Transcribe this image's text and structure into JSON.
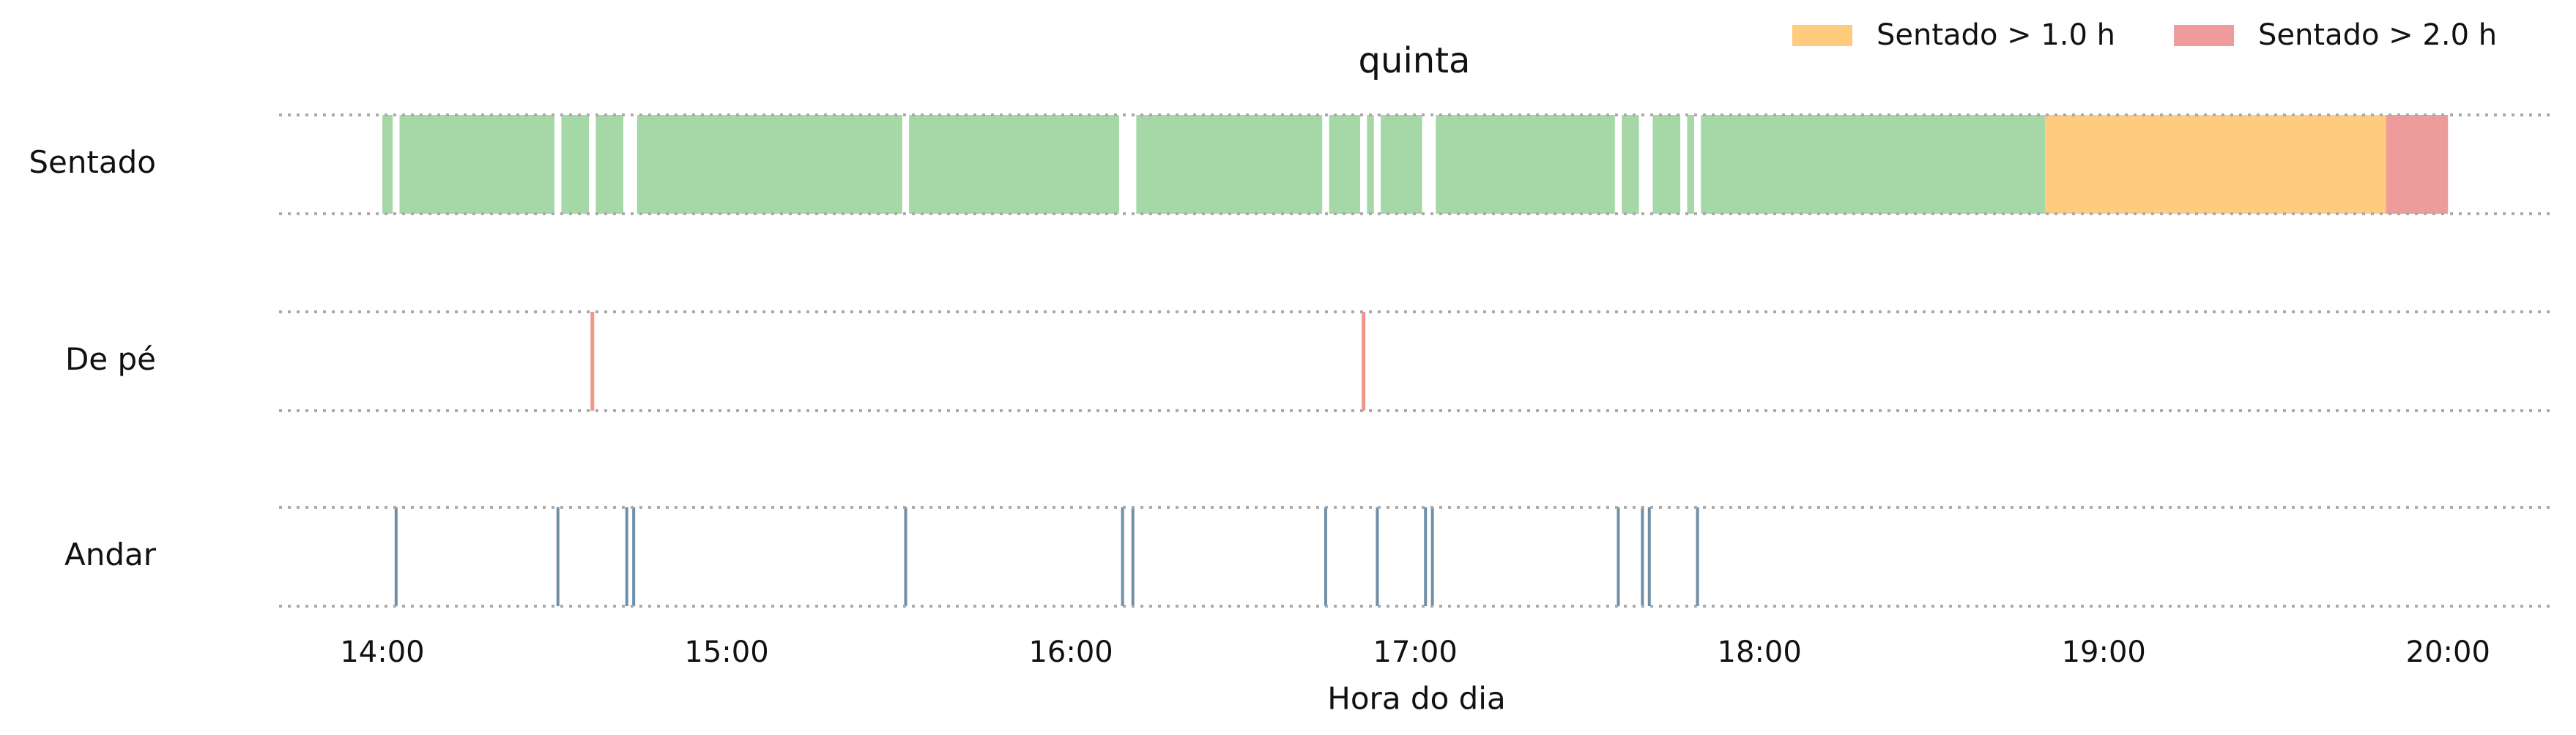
{
  "chart_data": {
    "type": "timeline",
    "title": "quinta",
    "xlabel": "Hora do dia",
    "xlim": [
      13.7,
      20.31
    ],
    "xticks": [
      {
        "value": 14,
        "label": "14:00"
      },
      {
        "value": 15,
        "label": "15:00"
      },
      {
        "value": 16,
        "label": "16:00"
      },
      {
        "value": 17,
        "label": "17:00"
      },
      {
        "value": 18,
        "label": "18:00"
      },
      {
        "value": 19,
        "label": "19:00"
      },
      {
        "value": 20,
        "label": "20:00"
      }
    ],
    "legend": "upper right",
    "rows": [
      {
        "label": "Sentado",
        "series": [
          {
            "color": "#a6d7a6",
            "intervals": [
              [
                14.0,
                14.03
              ],
              [
                14.05,
                14.5
              ],
              [
                14.52,
                14.6
              ],
              [
                14.62,
                14.7
              ],
              [
                14.74,
                15.51
              ],
              [
                15.53,
                16.14
              ],
              [
                16.19,
                16.73
              ],
              [
                16.75,
                16.84
              ],
              [
                16.86,
                16.88
              ],
              [
                16.9,
                17.02
              ],
              [
                17.06,
                17.58
              ],
              [
                17.6,
                17.65
              ],
              [
                17.69,
                17.77
              ],
              [
                17.79,
                17.81
              ],
              [
                17.83,
                18.83
              ]
            ]
          },
          {
            "name": "Sentado > 1.0 h",
            "color": "#fecb7f",
            "intervals": [
              [
                18.83,
                19.82
              ]
            ]
          },
          {
            "name": "Sentado > 2.0 h",
            "color": "#ee9b9b",
            "intervals": [
              [
                19.82,
                20.0
              ]
            ]
          }
        ]
      },
      {
        "label": "De pé",
        "series": [
          {
            "color": "#f0958a",
            "events": [
              14.61,
              16.85
            ]
          }
        ]
      },
      {
        "label": "Andar",
        "series": [
          {
            "color": "#6f8fa8",
            "events": [
              14.04,
              14.51,
              14.71,
              14.73,
              15.52,
              16.15,
              16.18,
              16.74,
              16.89,
              17.03,
              17.05,
              17.59,
              17.66,
              17.68,
              17.82
            ]
          }
        ]
      }
    ]
  }
}
